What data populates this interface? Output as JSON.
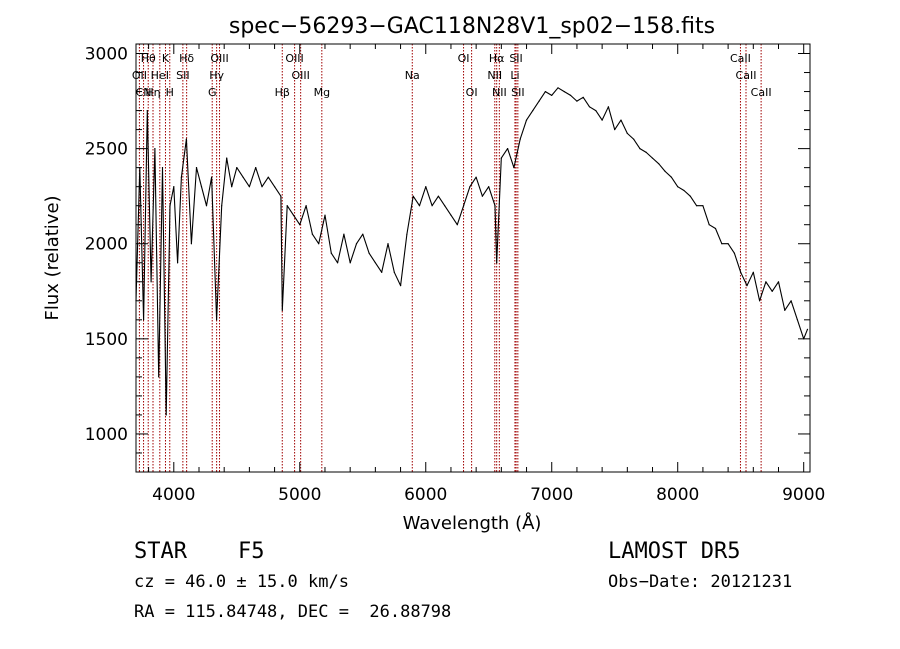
{
  "chart_data": {
    "type": "line",
    "title": "spec−56293−GAC118N28V1_sp02−158.fits",
    "xlabel": "Wavelength (Å)",
    "ylabel": "Flux (relative)",
    "xlim": [
      3700,
      9050
    ],
    "ylim": [
      800,
      3050
    ],
    "x_ticks": [
      4000,
      5000,
      6000,
      7000,
      8000,
      9000
    ],
    "y_ticks": [
      1000,
      1500,
      2000,
      2500,
      3000
    ],
    "grid": false,
    "series": [
      {
        "color": "#000000",
        "x": [
          3700,
          3730,
          3760,
          3790,
          3820,
          3850,
          3880,
          3910,
          3940,
          3970,
          4000,
          4030,
          4060,
          4100,
          4140,
          4180,
          4220,
          4260,
          4300,
          4340,
          4380,
          4420,
          4460,
          4500,
          4550,
          4600,
          4650,
          4700,
          4750,
          4800,
          4850,
          4861,
          4900,
          4950,
          5000,
          5050,
          5100,
          5150,
          5200,
          5250,
          5300,
          5350,
          5400,
          5450,
          5500,
          5550,
          5600,
          5650,
          5700,
          5750,
          5800,
          5850,
          5900,
          5950,
          6000,
          6050,
          6100,
          6150,
          6200,
          6250,
          6300,
          6350,
          6400,
          6450,
          6500,
          6550,
          6563,
          6600,
          6650,
          6700,
          6750,
          6800,
          6850,
          6900,
          6950,
          7000,
          7050,
          7100,
          7150,
          7200,
          7250,
          7300,
          7350,
          7400,
          7450,
          7500,
          7550,
          7600,
          7650,
          7700,
          7750,
          7800,
          7850,
          7900,
          7950,
          8000,
          8050,
          8100,
          8150,
          8200,
          8250,
          8300,
          8350,
          8400,
          8450,
          8500,
          8550,
          8600,
          8650,
          8700,
          8750,
          8800,
          8850,
          8900,
          8950,
          9000,
          9030
        ],
        "y": [
          1700,
          2400,
          1600,
          2700,
          1800,
          2500,
          1300,
          2400,
          1100,
          2200,
          2300,
          1900,
          2350,
          2550,
          2000,
          2400,
          2300,
          2200,
          2350,
          1600,
          2200,
          2450,
          2300,
          2400,
          2350,
          2300,
          2400,
          2300,
          2350,
          2300,
          2250,
          1650,
          2200,
          2150,
          2100,
          2200,
          2050,
          2000,
          2150,
          1950,
          1900,
          2050,
          1900,
          2000,
          2050,
          1950,
          1900,
          1850,
          2000,
          1850,
          1780,
          2050,
          2250,
          2200,
          2300,
          2200,
          2250,
          2200,
          2150,
          2100,
          2200,
          2300,
          2350,
          2250,
          2300,
          2200,
          1900,
          2450,
          2500,
          2400,
          2550,
          2650,
          2700,
          2750,
          2800,
          2780,
          2820,
          2800,
          2780,
          2750,
          2770,
          2720,
          2700,
          2650,
          2720,
          2600,
          2650,
          2580,
          2550,
          2500,
          2480,
          2450,
          2420,
          2380,
          2350,
          2300,
          2280,
          2250,
          2200,
          2200,
          2100,
          2080,
          2000,
          2000,
          1950,
          1850,
          1780,
          1850,
          1700,
          1800,
          1750,
          1800,
          1650,
          1700,
          1600,
          1500,
          1550
        ]
      }
    ],
    "lines": [
      {
        "label": "Hθ",
        "x": 3797,
        "row": 0
      },
      {
        "label": "K",
        "x": 3934,
        "row": 0
      },
      {
        "label": "Hδ",
        "x": 4102,
        "row": 0
      },
      {
        "label": "OIII",
        "x": 4363,
        "row": 0
      },
      {
        "label": "OIII",
        "x": 4959,
        "row": 0
      },
      {
        "label": "OI",
        "x": 6300,
        "row": 0
      },
      {
        "label": "Hα",
        "x": 6563,
        "row": 0
      },
      {
        "label": "SII",
        "x": 6717,
        "row": 0
      },
      {
        "label": "CaII",
        "x": 8498,
        "row": 0
      },
      {
        "label": "OII",
        "x": 3727,
        "row": 1
      },
      {
        "label": "HeI",
        "x": 3889,
        "row": 1
      },
      {
        "label": "SII",
        "x": 4072,
        "row": 1
      },
      {
        "label": "Hγ",
        "x": 4340,
        "row": 1
      },
      {
        "label": "OIII",
        "x": 5007,
        "row": 1
      },
      {
        "label": "Na",
        "x": 5893,
        "row": 1
      },
      {
        "label": "NII",
        "x": 6548,
        "row": 1
      },
      {
        "label": "Li",
        "x": 6708,
        "row": 1
      },
      {
        "label": "CaII",
        "x": 8542,
        "row": 1
      },
      {
        "label": "CN",
        "x": 3760,
        "row": 2
      },
      {
        "label": "Hη",
        "x": 3835,
        "row": 2
      },
      {
        "label": "H",
        "x": 3968,
        "row": 2
      },
      {
        "label": "G",
        "x": 4305,
        "row": 2
      },
      {
        "label": "Hβ",
        "x": 4861,
        "row": 2
      },
      {
        "label": "Mg",
        "x": 5175,
        "row": 2
      },
      {
        "label": "OI",
        "x": 6364,
        "row": 2
      },
      {
        "label": "NII",
        "x": 6584,
        "row": 2
      },
      {
        "label": "SII",
        "x": 6731,
        "row": 2
      },
      {
        "label": "CaII",
        "x": 8662,
        "row": 2
      }
    ],
    "line_color": "#a00000"
  },
  "info": {
    "object_class": "STAR",
    "subclass": "F5",
    "survey": "LAMOST DR5",
    "cz": "cz = 46.0 ± 15.0 km/s",
    "obs_date": "Obs−Date: 20121231",
    "coords": "RA = 115.84748, DEC =  26.88798"
  }
}
